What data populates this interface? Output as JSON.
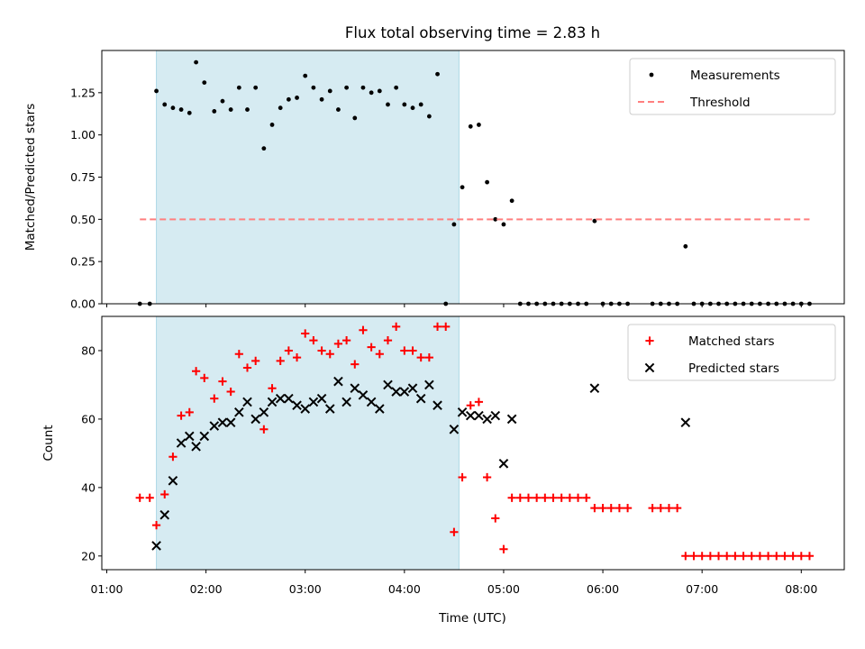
{
  "chart_data": {
    "type": "scatter",
    "title": "Flux total observing time = 2.83 h",
    "xlabel": "Time (UTC)",
    "xlim": [
      "00:57",
      "08:26"
    ],
    "xticks": [
      "01:00",
      "02:00",
      "03:00",
      "04:00",
      "05:00",
      "06:00",
      "07:00",
      "08:00"
    ],
    "highlight_span": {
      "start": "01:30",
      "end": "04:33",
      "color": "#add8e6"
    },
    "panels": [
      {
        "ylabel": "Matched/Predicted stars",
        "ylim": [
          0,
          1.5
        ],
        "yticks": [
          "0.00",
          "0.25",
          "0.50",
          "0.75",
          "1.00",
          "1.25"
        ],
        "legend": {
          "position": "top-right",
          "entries": [
            "Measurements",
            "Threshold"
          ]
        },
        "series": [
          {
            "name": "Measurements",
            "marker": "dot",
            "color": "#000000",
            "points": [
              [
                "01:20",
                0
              ],
              [
                "01:26",
                0
              ],
              [
                "01:30",
                1.26
              ],
              [
                "01:35",
                1.18
              ],
              [
                "01:40",
                1.16
              ],
              [
                "01:45",
                1.15
              ],
              [
                "01:50",
                1.13
              ],
              [
                "01:54",
                1.43
              ],
              [
                "01:59",
                1.31
              ],
              [
                "02:05",
                1.14
              ],
              [
                "02:10",
                1.2
              ],
              [
                "02:15",
                1.15
              ],
              [
                "02:20",
                1.28
              ],
              [
                "02:25",
                1.15
              ],
              [
                "02:30",
                1.28
              ],
              [
                "02:35",
                0.92
              ],
              [
                "02:40",
                1.06
              ],
              [
                "02:45",
                1.16
              ],
              [
                "02:50",
                1.21
              ],
              [
                "02:55",
                1.22
              ],
              [
                "03:00",
                1.35
              ],
              [
                "03:05",
                1.28
              ],
              [
                "03:10",
                1.21
              ],
              [
                "03:15",
                1.26
              ],
              [
                "03:20",
                1.15
              ],
              [
                "03:25",
                1.28
              ],
              [
                "03:30",
                1.1
              ],
              [
                "03:35",
                1.28
              ],
              [
                "03:40",
                1.25
              ],
              [
                "03:45",
                1.26
              ],
              [
                "03:50",
                1.18
              ],
              [
                "03:55",
                1.28
              ],
              [
                "04:00",
                1.18
              ],
              [
                "04:05",
                1.16
              ],
              [
                "04:10",
                1.18
              ],
              [
                "04:15",
                1.11
              ],
              [
                "04:20",
                1.36
              ],
              [
                "04:25",
                0
              ],
              [
                "04:30",
                0.47
              ],
              [
                "04:35",
                0.69
              ],
              [
                "04:40",
                1.05
              ],
              [
                "04:45",
                1.06
              ],
              [
                "04:50",
                0.72
              ],
              [
                "04:55",
                0.5
              ],
              [
                "05:00",
                0.47
              ],
              [
                "05:05",
                0.61
              ],
              [
                "05:10",
                0
              ],
              [
                "05:15",
                0
              ],
              [
                "05:20",
                0
              ],
              [
                "05:25",
                0
              ],
              [
                "05:30",
                0
              ],
              [
                "05:35",
                0
              ],
              [
                "05:40",
                0
              ],
              [
                "05:45",
                0
              ],
              [
                "05:50",
                0
              ],
              [
                "05:55",
                0.49
              ],
              [
                "06:00",
                0
              ],
              [
                "06:05",
                0
              ],
              [
                "06:10",
                0
              ],
              [
                "06:15",
                0
              ],
              [
                "06:30",
                0
              ],
              [
                "06:35",
                0
              ],
              [
                "06:40",
                0
              ],
              [
                "06:45",
                0
              ],
              [
                "06:50",
                0.34
              ],
              [
                "06:55",
                0
              ],
              [
                "07:00",
                0
              ],
              [
                "07:05",
                0
              ],
              [
                "07:10",
                0
              ],
              [
                "07:15",
                0
              ],
              [
                "07:20",
                0
              ],
              [
                "07:25",
                0
              ],
              [
                "07:30",
                0
              ],
              [
                "07:35",
                0
              ],
              [
                "07:40",
                0
              ],
              [
                "07:45",
                0
              ],
              [
                "07:50",
                0
              ],
              [
                "07:55",
                0
              ],
              [
                "08:00",
                0
              ],
              [
                "08:05",
                0
              ]
            ]
          },
          {
            "name": "Threshold",
            "marker": "dashed-line",
            "color": "#ff7f7f",
            "points": [
              [
                "01:20",
                0.5
              ],
              [
                "08:05",
                0.5
              ]
            ]
          }
        ]
      },
      {
        "ylabel": "Count",
        "ylim": [
          16,
          90
        ],
        "yticks": [
          "20",
          "40",
          "60",
          "80"
        ],
        "legend": {
          "position": "top-right",
          "entries": [
            "Matched stars",
            "Predicted stars"
          ]
        },
        "series": [
          {
            "name": "Matched stars",
            "marker": "plus",
            "color": "#ff0000",
            "points": [
              [
                "01:20",
                37
              ],
              [
                "01:26",
                37
              ],
              [
                "01:30",
                29
              ],
              [
                "01:35",
                38
              ],
              [
                "01:40",
                49
              ],
              [
                "01:45",
                61
              ],
              [
                "01:50",
                62
              ],
              [
                "01:54",
                74
              ],
              [
                "01:59",
                72
              ],
              [
                "02:05",
                66
              ],
              [
                "02:10",
                71
              ],
              [
                "02:15",
                68
              ],
              [
                "02:20",
                79
              ],
              [
                "02:25",
                75
              ],
              [
                "02:30",
                77
              ],
              [
                "02:35",
                57
              ],
              [
                "02:40",
                69
              ],
              [
                "02:45",
                77
              ],
              [
                "02:50",
                80
              ],
              [
                "02:55",
                78
              ],
              [
                "03:00",
                85
              ],
              [
                "03:05",
                83
              ],
              [
                "03:10",
                80
              ],
              [
                "03:15",
                79
              ],
              [
                "03:20",
                82
              ],
              [
                "03:25",
                83
              ],
              [
                "03:30",
                76
              ],
              [
                "03:35",
                86
              ],
              [
                "03:40",
                81
              ],
              [
                "03:45",
                79
              ],
              [
                "03:50",
                83
              ],
              [
                "03:55",
                87
              ],
              [
                "04:00",
                80
              ],
              [
                "04:05",
                80
              ],
              [
                "04:10",
                78
              ],
              [
                "04:15",
                78
              ],
              [
                "04:20",
                87
              ],
              [
                "04:25",
                87
              ],
              [
                "04:30",
                27
              ],
              [
                "04:35",
                43
              ],
              [
                "04:40",
                64
              ],
              [
                "04:45",
                65
              ],
              [
                "04:50",
                43
              ],
              [
                "04:55",
                31
              ],
              [
                "05:00",
                22
              ],
              [
                "05:05",
                37
              ],
              [
                "05:10",
                37
              ],
              [
                "05:15",
                37
              ],
              [
                "05:20",
                37
              ],
              [
                "05:25",
                37
              ],
              [
                "05:30",
                37
              ],
              [
                "05:35",
                37
              ],
              [
                "05:40",
                37
              ],
              [
                "05:45",
                37
              ],
              [
                "05:50",
                37
              ],
              [
                "05:55",
                34
              ],
              [
                "06:00",
                34
              ],
              [
                "06:05",
                34
              ],
              [
                "06:10",
                34
              ],
              [
                "06:15",
                34
              ],
              [
                "06:30",
                34
              ],
              [
                "06:35",
                34
              ],
              [
                "06:40",
                34
              ],
              [
                "06:45",
                34
              ],
              [
                "06:50",
                20
              ],
              [
                "06:55",
                20
              ],
              [
                "07:00",
                20
              ],
              [
                "07:05",
                20
              ],
              [
                "07:10",
                20
              ],
              [
                "07:15",
                20
              ],
              [
                "07:20",
                20
              ],
              [
                "07:25",
                20
              ],
              [
                "07:30",
                20
              ],
              [
                "07:35",
                20
              ],
              [
                "07:40",
                20
              ],
              [
                "07:45",
                20
              ],
              [
                "07:50",
                20
              ],
              [
                "07:55",
                20
              ],
              [
                "08:00",
                20
              ],
              [
                "08:05",
                20
              ]
            ]
          },
          {
            "name": "Predicted stars",
            "marker": "x",
            "color": "#000000",
            "points": [
              [
                "01:30",
                23
              ],
              [
                "01:35",
                32
              ],
              [
                "01:40",
                42
              ],
              [
                "01:45",
                53
              ],
              [
                "01:50",
                55
              ],
              [
                "01:54",
                52
              ],
              [
                "01:59",
                55
              ],
              [
                "02:05",
                58
              ],
              [
                "02:10",
                59
              ],
              [
                "02:15",
                59
              ],
              [
                "02:20",
                62
              ],
              [
                "02:25",
                65
              ],
              [
                "02:30",
                60
              ],
              [
                "02:35",
                62
              ],
              [
                "02:40",
                65
              ],
              [
                "02:45",
                66
              ],
              [
                "02:50",
                66
              ],
              [
                "02:55",
                64
              ],
              [
                "03:00",
                63
              ],
              [
                "03:05",
                65
              ],
              [
                "03:10",
                66
              ],
              [
                "03:15",
                63
              ],
              [
                "03:20",
                71
              ],
              [
                "03:25",
                65
              ],
              [
                "03:30",
                69
              ],
              [
                "03:35",
                67
              ],
              [
                "03:40",
                65
              ],
              [
                "03:45",
                63
              ],
              [
                "03:50",
                70
              ],
              [
                "03:55",
                68
              ],
              [
                "04:00",
                68
              ],
              [
                "04:05",
                69
              ],
              [
                "04:10",
                66
              ],
              [
                "04:15",
                70
              ],
              [
                "04:20",
                64
              ],
              [
                "04:30",
                57
              ],
              [
                "04:35",
                62
              ],
              [
                "04:40",
                61
              ],
              [
                "04:45",
                61
              ],
              [
                "04:50",
                60
              ],
              [
                "04:55",
                61
              ],
              [
                "05:00",
                47
              ],
              [
                "05:05",
                60
              ],
              [
                "05:55",
                69
              ],
              [
                "06:50",
                59
              ]
            ]
          }
        ]
      }
    ]
  }
}
